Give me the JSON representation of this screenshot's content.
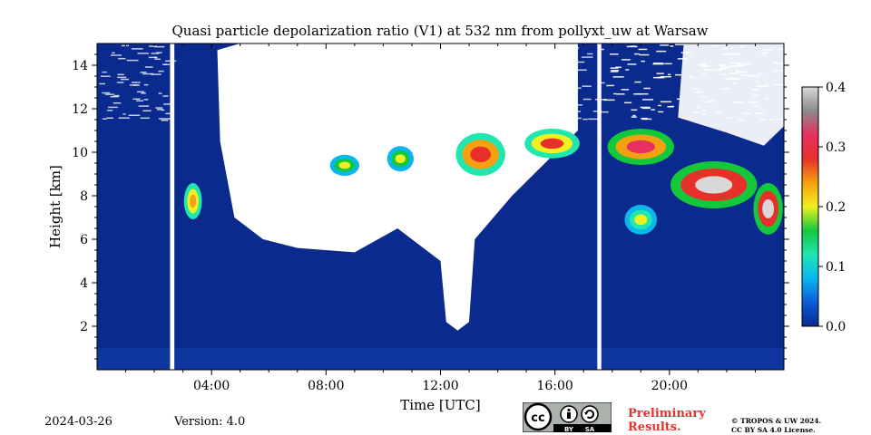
{
  "chart_data": {
    "type": "heatmap",
    "title": "Quasi particle depolarization ratio (V1) at 532 nm from pollyxt_uw at Warsaw",
    "xlabel": "Time [UTC]",
    "ylabel": "Height [km]",
    "x_unit": "hour UTC",
    "xlim": [
      0,
      24
    ],
    "ylim": [
      0,
      15
    ],
    "x_ticks": [
      {
        "value": 4,
        "label": "04:00"
      },
      {
        "value": 8,
        "label": "08:00"
      },
      {
        "value": 12,
        "label": "12:00"
      },
      {
        "value": 16,
        "label": "16:00"
      },
      {
        "value": 20,
        "label": "20:00"
      }
    ],
    "y_ticks": [
      {
        "value": 2,
        "label": "2"
      },
      {
        "value": 4,
        "label": "4"
      },
      {
        "value": 6,
        "label": "6"
      },
      {
        "value": 8,
        "label": "8"
      },
      {
        "value": 10,
        "label": "10"
      },
      {
        "value": 12,
        "label": "12"
      },
      {
        "value": 14,
        "label": "14"
      }
    ],
    "colorbar": {
      "range": [
        0.0,
        0.4
      ],
      "ticks": [
        {
          "value": 0.0,
          "label": "0.0"
        },
        {
          "value": 0.1,
          "label": "0.1"
        },
        {
          "value": 0.2,
          "label": "0.2"
        },
        {
          "value": 0.3,
          "label": "0.3"
        },
        {
          "value": 0.4,
          "label": "0.4"
        }
      ],
      "colormap": [
        "#0a2a8e",
        "#0b5bd6",
        "#08b6f0",
        "#20e6b0",
        "#14c83c",
        "#f0f020",
        "#f5a010",
        "#e8302a",
        "#e83060",
        "#8a8a8a",
        "#d8d8d8"
      ]
    },
    "background_value": 0.02,
    "no_data_gaps_hours": [
      [
        2.55,
        2.7
      ],
      [
        17.48,
        17.62
      ]
    ],
    "no_data_color": "#ffffff",
    "cloud_masked_region_color": "#ffffff",
    "features": [
      {
        "label": "depolarizing layer",
        "x_range": [
          3.1,
          3.6
        ],
        "y_range": [
          7.0,
          8.5
        ],
        "ratio": 0.25
      },
      {
        "label": "depolarizing layer",
        "x_range": [
          8.2,
          9.1
        ],
        "y_range": [
          9.0,
          9.8
        ],
        "ratio": 0.2
      },
      {
        "label": "depolarizing layer",
        "x_range": [
          10.2,
          11.0
        ],
        "y_range": [
          9.2,
          10.2
        ],
        "ratio": 0.22
      },
      {
        "label": "depolarizing layer",
        "x_range": [
          12.6,
          14.2
        ],
        "y_range": [
          9.0,
          10.8
        ],
        "ratio": 0.3
      },
      {
        "label": "depolarizing layer",
        "x_range": [
          15.0,
          16.8
        ],
        "y_range": [
          9.8,
          11.0
        ],
        "ratio": 0.28
      },
      {
        "label": "depolarizing layer",
        "x_range": [
          17.9,
          20.1
        ],
        "y_range": [
          9.5,
          11.0
        ],
        "ratio": 0.33
      },
      {
        "label": "depolarizing layer",
        "x_range": [
          18.5,
          19.5
        ],
        "y_range": [
          6.3,
          7.5
        ],
        "ratio": 0.18
      },
      {
        "label": "depolarizing layer",
        "x_range": [
          20.1,
          23.0
        ],
        "y_range": [
          7.5,
          9.5
        ],
        "ratio": 0.38
      },
      {
        "label": "depolarizing layer",
        "x_range": [
          23.0,
          23.9
        ],
        "y_range": [
          6.3,
          8.5
        ],
        "ratio": 0.38
      }
    ]
  },
  "footer": {
    "date": "2024-03-26",
    "version": "Version: 4.0",
    "preliminary_line1": "Preliminary",
    "preliminary_line2": "Results.",
    "copyright_line1": "© TROPOS & UW 2024.",
    "copyright_line2": "CC BY SA 4.0 License.",
    "license_badge_text": [
      "cc",
      "BY",
      "SA"
    ]
  }
}
